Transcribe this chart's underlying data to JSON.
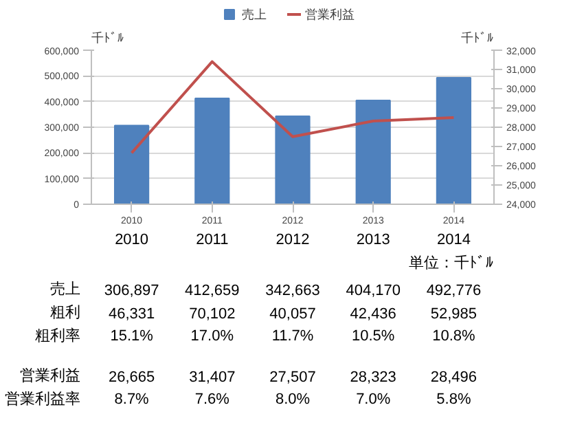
{
  "chart_data": {
    "type": "bar",
    "categories": [
      "2010",
      "2011",
      "2012",
      "2013",
      "2014"
    ],
    "series": [
      {
        "name": "売上",
        "color": "#4f81bd",
        "values": [
          306897,
          412659,
          342663,
          404170,
          492776
        ],
        "value_labels": [
          "306,897",
          "412,659",
          "342,663",
          "404,170",
          "492,776"
        ]
      },
      {
        "name": "営業利益",
        "type": "line",
        "axis": "y2",
        "color": "#c0504d",
        "values": [
          26665,
          31407,
          27507,
          28323,
          28496
        ],
        "value_labels": [
          "26,665",
          "31,407",
          "27,507",
          "28,323",
          "28,496"
        ]
      }
    ],
    "ylabel": "千ﾄﾞﾙ",
    "y2label": "千ﾄﾞﾙ",
    "ylim": [
      0,
      600000
    ],
    "yticks": [
      0,
      {
        "value": 100000,
        "label": "100,000"
      },
      {
        "value": 200000,
        "label": "200,000"
      },
      {
        "value": 300000,
        "label": "300,000"
      },
      {
        "value": 400000,
        "label": "400,000"
      },
      {
        "value": 500000,
        "label": "500,000"
      },
      {
        "value": 600000,
        "label": "600,000"
      }
    ],
    "y2lim": [
      24000,
      32000
    ],
    "y2ticks": [
      {
        "value": 24000,
        "label": "24,000"
      },
      {
        "value": 25000,
        "label": "25,000"
      },
      {
        "value": 26000,
        "label": "26,000"
      },
      {
        "value": 27000,
        "label": "27,000"
      },
      {
        "value": 28000,
        "label": "28,000"
      },
      {
        "value": 29000,
        "label": "29,000"
      },
      {
        "value": 30000,
        "label": "30,000"
      },
      {
        "value": 31000,
        "label": "31,000"
      },
      {
        "value": 32000,
        "label": "32,000"
      }
    ],
    "grid": "y",
    "legend": "top",
    "annotations": [
      "単位：千ﾄﾞﾙ",
      "粗利",
      "46,331",
      "70,102",
      "40,057",
      "42,436",
      "52,985",
      "粗利率",
      "15.1%",
      "17.0%",
      "11.7%",
      "10.5%",
      "10.8%",
      "営業利益率",
      "8.7%",
      "7.6%",
      "8.0%",
      "7.0%",
      "5.8%"
    ]
  }
}
